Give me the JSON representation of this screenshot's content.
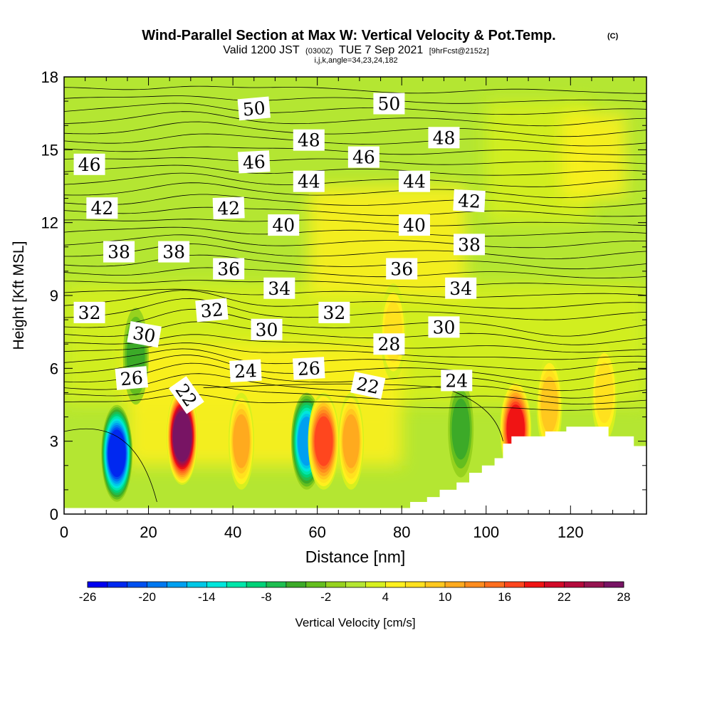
{
  "header": {
    "title": "Wind-Parallel Section at Max W: Vertical Velocity & Pot.Temp.",
    "copyright": "(C)",
    "valid_prefix": "Valid 1200 JST",
    "valid_utc": "(0300Z)",
    "valid_date": "TUE 7 Sep 2021",
    "forecast": "[9hrFcst@2152z]",
    "indices": "i,j,k,angle=34,23,24,182"
  },
  "colors": {
    "background_field": "#b4e632",
    "neutral_field": "#d7f01e",
    "weak_updraft": "#fff01e",
    "terrain": "#ffffff",
    "contour_line": "#000000"
  },
  "chart_data": {
    "type": "heatmap",
    "xlabel": "Distance [nm]",
    "ylabel": "Height [Kft MSL]",
    "xlim": [
      0,
      138
    ],
    "ylim": [
      0,
      18
    ],
    "x_ticks": [
      0,
      20,
      40,
      60,
      80,
      100,
      120
    ],
    "y_ticks": [
      0,
      3,
      6,
      9,
      12,
      15,
      18
    ],
    "colorbar": {
      "label": "Vertical Velocity [cm/s]",
      "min": -26,
      "max": 28,
      "step": 2,
      "tick_labels": [
        -26,
        -20,
        -14,
        -8,
        -2,
        4,
        10,
        16,
        22,
        28
      ],
      "colors": [
        "#0000f0",
        "#0028f0",
        "#0050f0",
        "#0078f0",
        "#00a0f0",
        "#00c8e6",
        "#00e6dc",
        "#00e6aa",
        "#00d278",
        "#1ebe50",
        "#3caa28",
        "#64be1e",
        "#96d21e",
        "#b4e632",
        "#d7f01e",
        "#fff01e",
        "#ffe11e",
        "#ffc81e",
        "#ffaa1e",
        "#ff8c1e",
        "#ff6e1e",
        "#ff461e",
        "#f01414",
        "#d20a28",
        "#b40a3c",
        "#961450",
        "#781464"
      ]
    },
    "velocity_cells": [
      {
        "x": 12.5,
        "y": 2.5,
        "w": -24
      },
      {
        "x": 28.0,
        "y": 3.2,
        "w": 28
      },
      {
        "x": 42.0,
        "y": 3.0,
        "w": 10
      },
      {
        "x": 57.5,
        "y": 3.0,
        "w": -18
      },
      {
        "x": 61.5,
        "y": 3.0,
        "w": 16
      },
      {
        "x": 68.0,
        "y": 3.0,
        "w": 10
      },
      {
        "x": 94.0,
        "y": 3.5,
        "w": -6
      },
      {
        "x": 107.0,
        "y": 3.5,
        "w": 18
      },
      {
        "x": 115.0,
        "y": 4.5,
        "w": 8
      },
      {
        "x": 128.0,
        "y": 5.0,
        "w": 6
      },
      {
        "x": 17.0,
        "y": 6.5,
        "w": -6
      },
      {
        "x": 78.0,
        "y": 7.5,
        "w": 6
      }
    ],
    "terrain": [
      [
        0,
        0.25
      ],
      [
        80,
        0.25
      ],
      [
        82,
        0.5
      ],
      [
        86,
        0.7
      ],
      [
        89,
        1.0
      ],
      [
        93,
        1.3
      ],
      [
        96,
        1.7
      ],
      [
        99,
        2.0
      ],
      [
        102,
        2.3
      ],
      [
        104,
        2.9
      ],
      [
        106,
        3.2
      ],
      [
        114,
        3.4
      ],
      [
        119,
        3.6
      ],
      [
        126,
        3.6
      ],
      [
        129,
        3.2
      ],
      [
        133,
        3.2
      ],
      [
        135,
        2.8
      ],
      [
        138,
        2.6
      ]
    ],
    "isentropes": {
      "min": 20,
      "max": 52,
      "step": 1,
      "labels": [
        {
          "text": "50",
          "x": 45,
          "y": 16.7,
          "angle": -5
        },
        {
          "text": "50",
          "x": 77,
          "y": 16.9,
          "angle": 0
        },
        {
          "text": "48",
          "x": 58,
          "y": 15.4,
          "angle": 0
        },
        {
          "text": "48",
          "x": 90,
          "y": 15.5,
          "angle": 0
        },
        {
          "text": "46",
          "x": 6,
          "y": 14.4,
          "angle": 0
        },
        {
          "text": "46",
          "x": 45,
          "y": 14.5,
          "angle": -3
        },
        {
          "text": "46",
          "x": 71,
          "y": 14.7,
          "angle": 0
        },
        {
          "text": "44",
          "x": 58,
          "y": 13.7,
          "angle": 0
        },
        {
          "text": "44",
          "x": 83,
          "y": 13.7,
          "angle": 0
        },
        {
          "text": "42",
          "x": 9,
          "y": 12.6,
          "angle": 0
        },
        {
          "text": "42",
          "x": 39,
          "y": 12.6,
          "angle": -2
        },
        {
          "text": "42",
          "x": 96,
          "y": 12.9,
          "angle": 3
        },
        {
          "text": "40",
          "x": 52,
          "y": 11.9,
          "angle": 0
        },
        {
          "text": "40",
          "x": 83,
          "y": 11.9,
          "angle": 0
        },
        {
          "text": "38",
          "x": 13,
          "y": 10.8,
          "angle": 0
        },
        {
          "text": "38",
          "x": 26,
          "y": 10.8,
          "angle": 0
        },
        {
          "text": "38",
          "x": 96,
          "y": 11.1,
          "angle": 0
        },
        {
          "text": "36",
          "x": 39,
          "y": 10.1,
          "angle": 0
        },
        {
          "text": "36",
          "x": 80,
          "y": 10.1,
          "angle": 0
        },
        {
          "text": "34",
          "x": 51,
          "y": 9.3,
          "angle": 0
        },
        {
          "text": "34",
          "x": 94,
          "y": 9.3,
          "angle": 0
        },
        {
          "text": "32",
          "x": 6,
          "y": 8.3,
          "angle": 0
        },
        {
          "text": "32",
          "x": 35,
          "y": 8.4,
          "angle": -5
        },
        {
          "text": "32",
          "x": 64,
          "y": 8.3,
          "angle": 0
        },
        {
          "text": "30",
          "x": 19,
          "y": 7.4,
          "angle": 10
        },
        {
          "text": "30",
          "x": 48,
          "y": 7.6,
          "angle": 0
        },
        {
          "text": "30",
          "x": 90,
          "y": 7.7,
          "angle": 0
        },
        {
          "text": "28",
          "x": 77,
          "y": 7.0,
          "angle": 0
        },
        {
          "text": "26",
          "x": 16,
          "y": 5.6,
          "angle": -5
        },
        {
          "text": "26",
          "x": 58,
          "y": 6.0,
          "angle": -3
        },
        {
          "text": "24",
          "x": 43,
          "y": 5.9,
          "angle": -3
        },
        {
          "text": "24",
          "x": 93,
          "y": 5.5,
          "angle": 0
        },
        {
          "text": "22",
          "x": 29,
          "y": 4.9,
          "angle": 55
        },
        {
          "text": "22",
          "x": 72,
          "y": 5.3,
          "angle": 12
        }
      ]
    }
  }
}
